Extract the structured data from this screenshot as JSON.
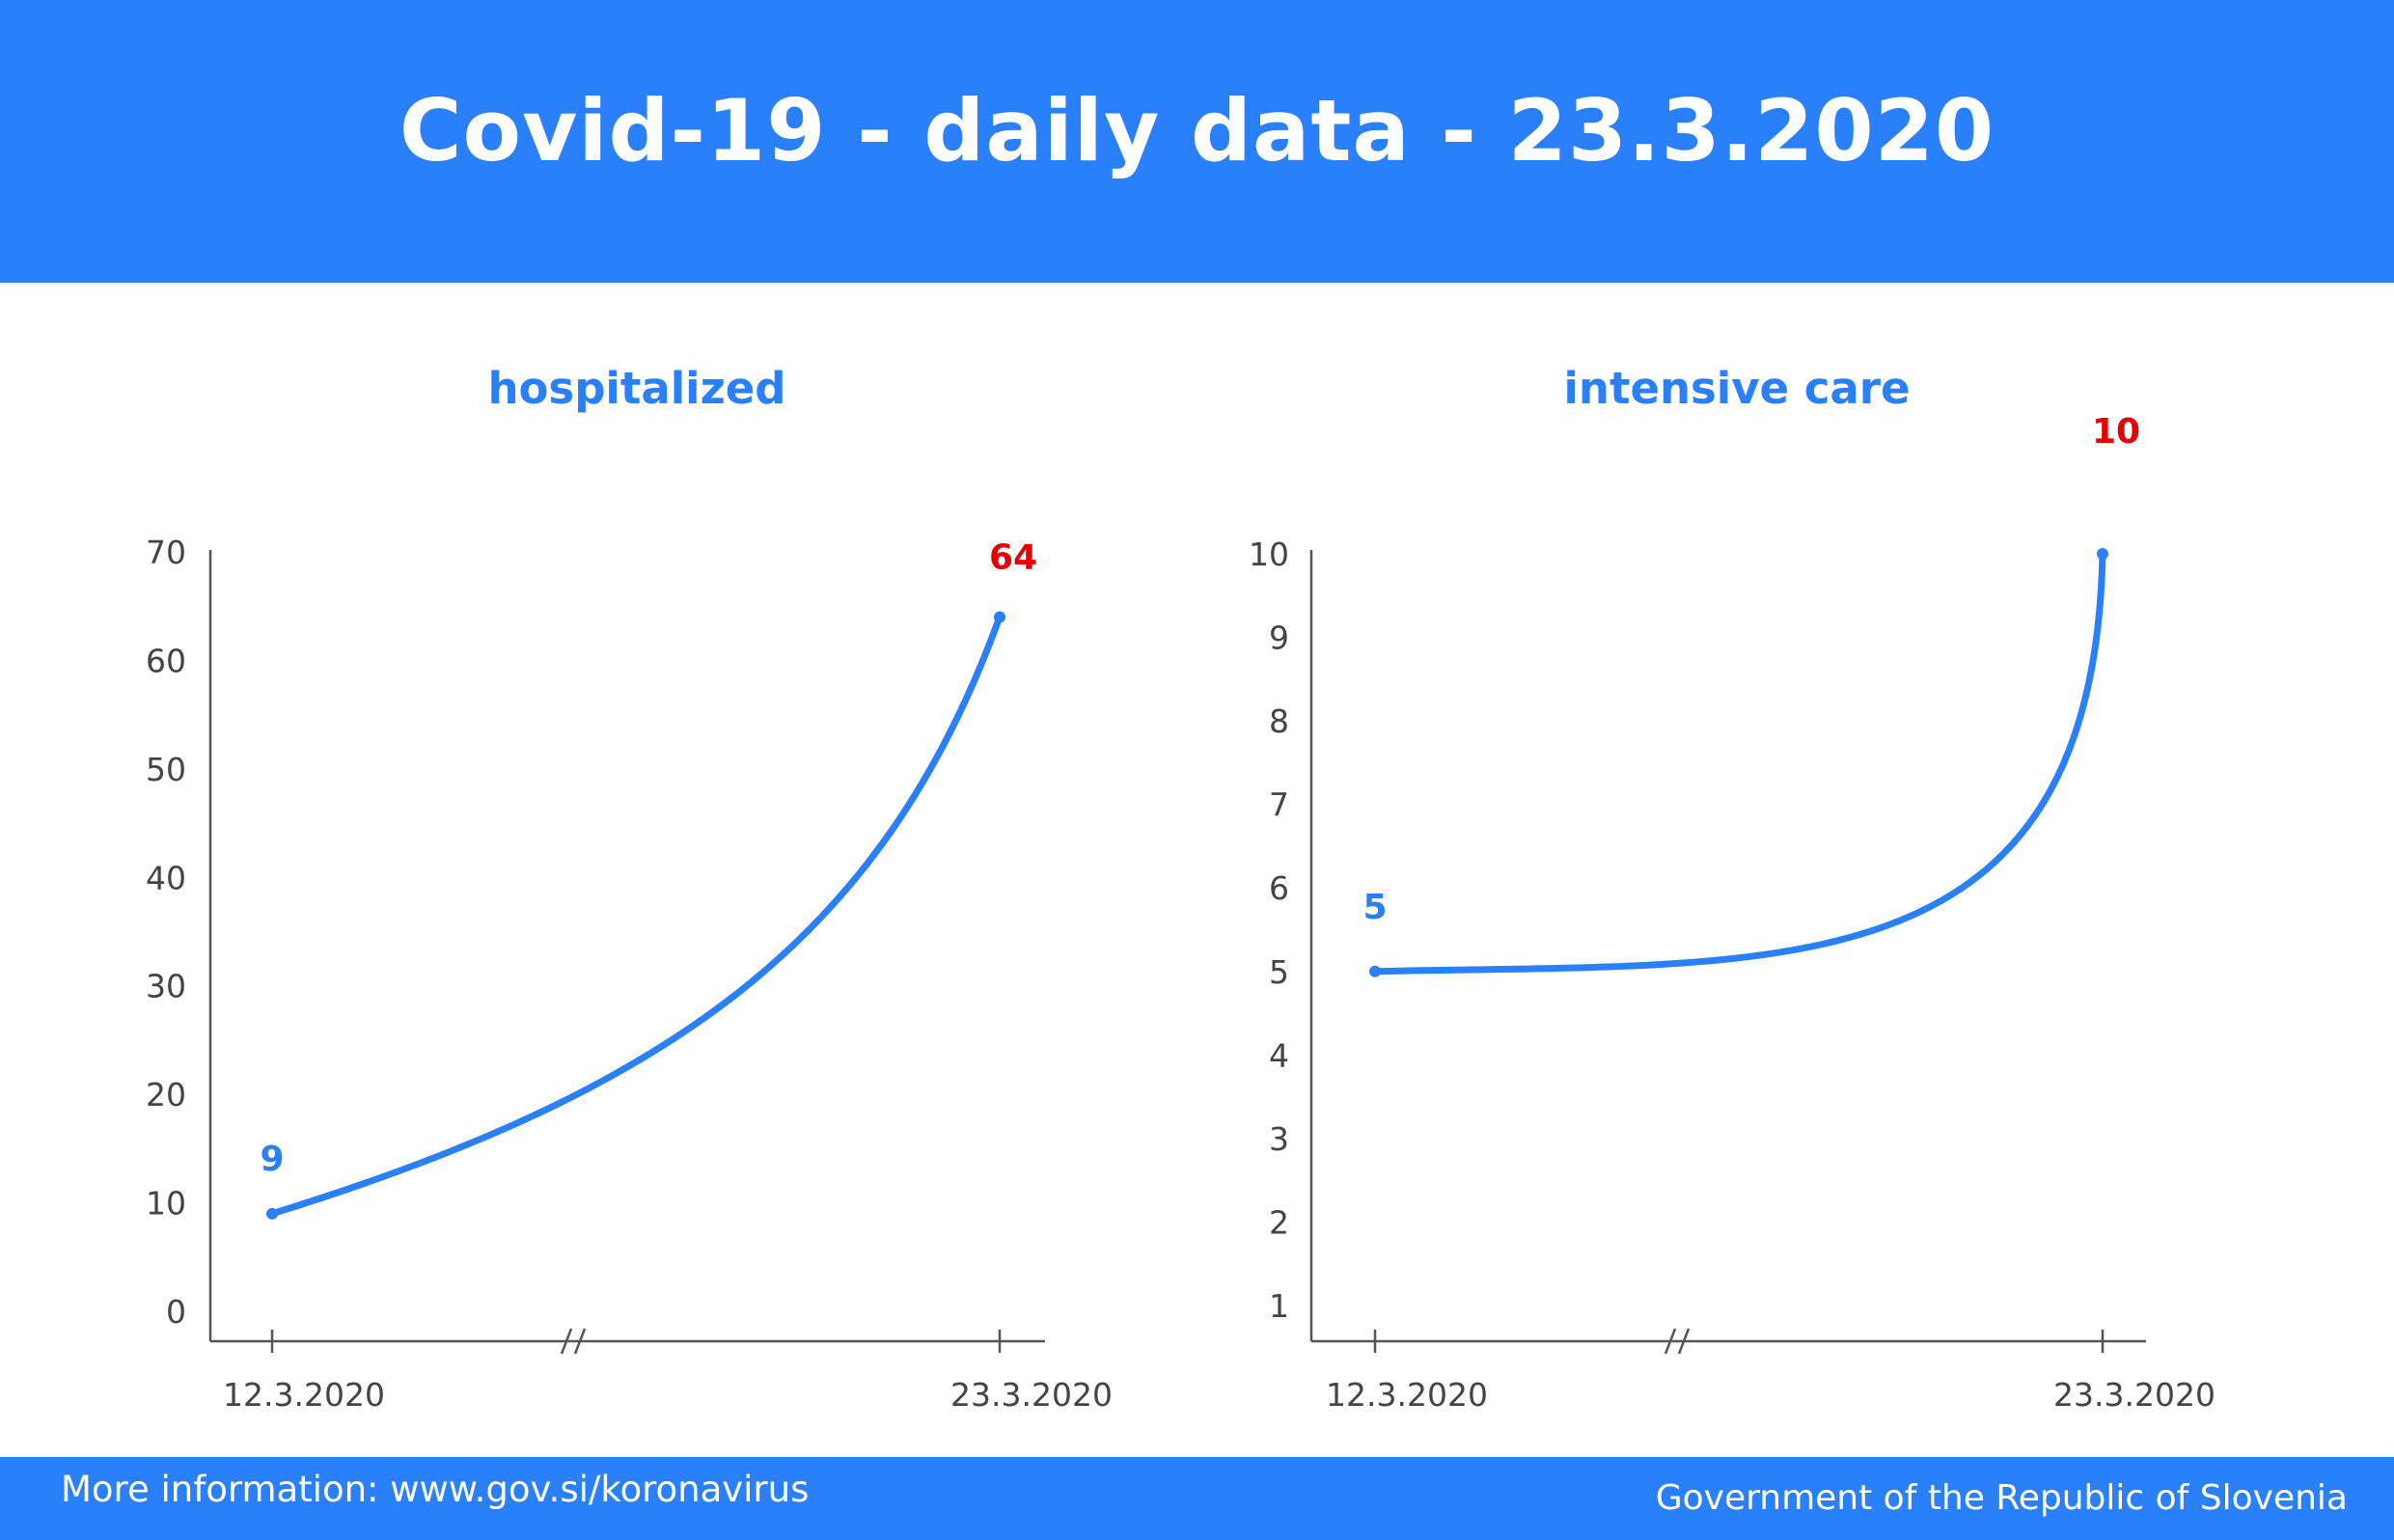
{
  "header": {
    "title": "Covid-19 - daily data - 23.3.2020",
    "color": "#2a80fb"
  },
  "footer": {
    "left": "More information: www.gov.si/koronavirus",
    "right": "Government of the Republic of Slovenia"
  },
  "colors": {
    "accent": "#2a80fb",
    "latest_value": "#e60000",
    "axis": "#555555"
  },
  "chart_data": [
    {
      "type": "line",
      "title": "hospitalized",
      "x": [
        "12.3.2020",
        "23.3.2020"
      ],
      "series": [
        {
          "values": [
            9,
            64
          ]
        }
      ],
      "data_labels": [
        "9",
        "64"
      ],
      "yticks": [
        "0",
        "10",
        "20",
        "30",
        "40",
        "50",
        "60",
        "70"
      ],
      "ylim": [
        0,
        70
      ],
      "axis_break": true,
      "grid": false,
      "legend": "none"
    },
    {
      "type": "line",
      "title": "intensive care",
      "x": [
        "12.3.2020",
        "23.3.2020"
      ],
      "series": [
        {
          "values": [
            5,
            10
          ]
        }
      ],
      "data_labels": [
        "5",
        "10"
      ],
      "yticks": [
        "1",
        "2",
        "3",
        "4",
        "5",
        "6",
        "7",
        "8",
        "9",
        "10"
      ],
      "ylim": [
        1,
        10
      ],
      "axis_break": true,
      "grid": false,
      "legend": "none"
    }
  ]
}
